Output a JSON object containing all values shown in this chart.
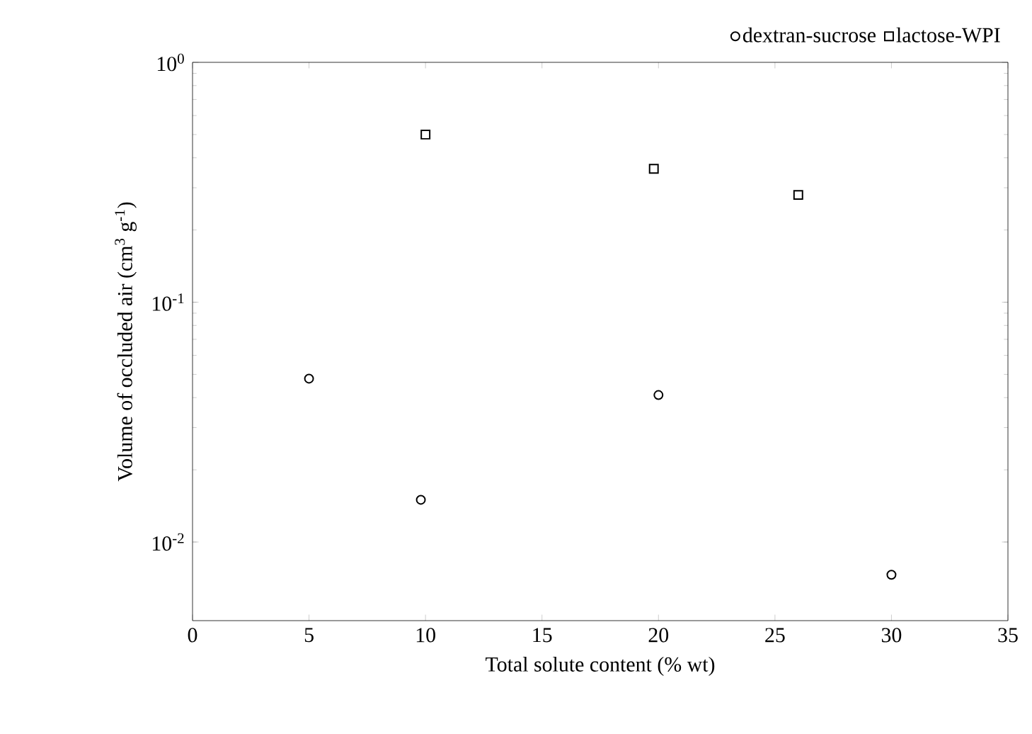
{
  "chart_data": {
    "type": "scatter",
    "xlabel": "Total solute content (% wt)",
    "ylabel": "Volume of occluded air (cm$^{3}$ g$^{-1}$)",
    "log": "y",
    "xlim": [
      0,
      35
    ],
    "xticks": [
      0,
      5,
      10,
      15,
      20,
      25,
      30,
      35
    ],
    "ylim": [
      0.0047,
      1
    ],
    "yticks": [
      {
        "value": 0.01,
        "label": "10$^{-2}$"
      },
      {
        "value": 0.1,
        "label": "10$^{-1}$"
      },
      {
        "value": 1,
        "label": "10$^{0}$"
      }
    ],
    "legend": "top right",
    "series": [
      {
        "name": "dextran-sucrose",
        "color": "#000000",
        "marker": "circle",
        "x": [
          5,
          9.8,
          20,
          30
        ],
        "values": [
          0.048,
          0.015,
          0.041,
          0.0073
        ]
      },
      {
        "name": "lactose-WPI",
        "color": "#000000",
        "marker": "square",
        "x": [
          10,
          19.8,
          26
        ],
        "values": [
          0.5,
          0.36,
          0.28
        ]
      }
    ]
  }
}
